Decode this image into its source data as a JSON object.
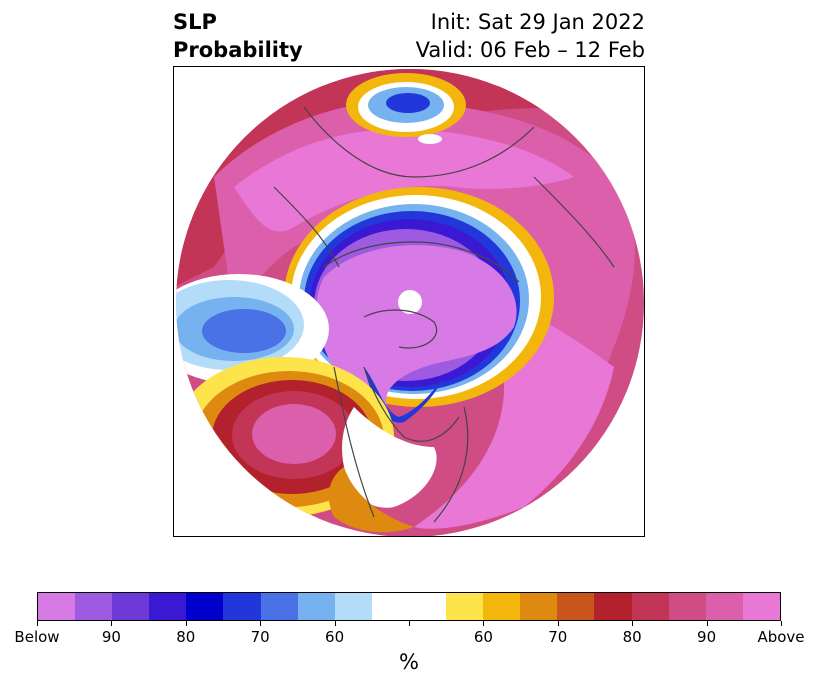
{
  "title": {
    "left_line1": "SLP",
    "left_line2": "Probability",
    "right_line1": "Init: Sat 29 Jan 2022",
    "right_line2": "Valid: 06 Feb – 12 Feb"
  },
  "colorbar": {
    "colors": [
      "#d77ae6",
      "#9e5ae0",
      "#6d3ad8",
      "#3b19d3",
      "#0000cd",
      "#2137d9",
      "#4a72e6",
      "#77b2f0",
      "#b3dcf9",
      "#ffffff",
      "#ffffff",
      "#fde44b",
      "#f3b60c",
      "#de8a11",
      "#c8561c",
      "#b2212c",
      "#c23556",
      "#cf4c84",
      "#dc5fab",
      "#e977d6"
    ],
    "tick_labels": [
      "Below",
      "90",
      "80",
      "70",
      "60",
      "",
      "60",
      "70",
      "80",
      "90",
      "Above"
    ],
    "unit_label": "%"
  },
  "map": {
    "below_colors": {
      "b90": "#d77ae6",
      "b80": "#9e5ae0",
      "b70": "#3b19d3",
      "b60": "#2137d9",
      "b50": "#77b2f0",
      "b40": "#b3dcf9"
    },
    "above_colors": {
      "a40": "#fde44b",
      "a50": "#f3b60c",
      "a60": "#de8a11",
      "a70": "#c8561c",
      "a80": "#b2212c",
      "a85": "#c23556",
      "a90": "#cf4c84",
      "a95": "#dc5fab",
      "a100": "#e977d6"
    }
  }
}
